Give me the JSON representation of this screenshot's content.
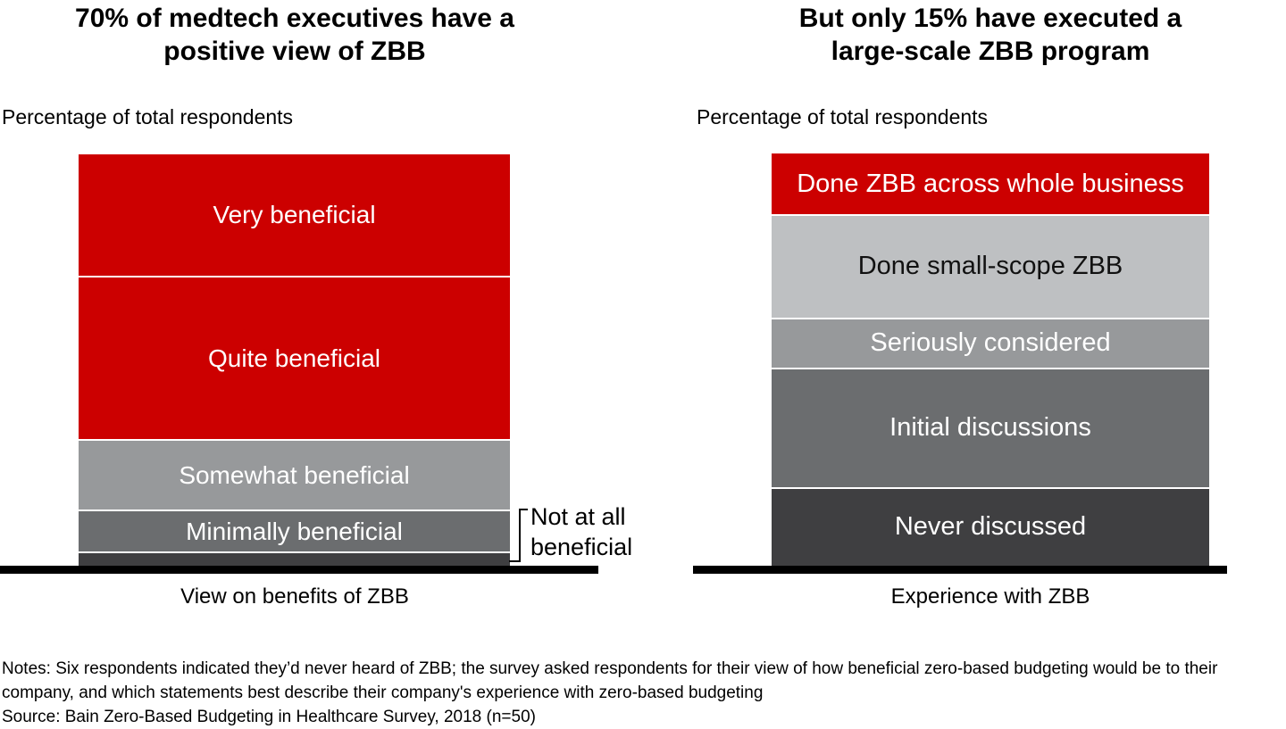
{
  "page": {
    "background": "#FFFFFF",
    "accent_red": "#CC0000",
    "axis_color": "#000000"
  },
  "chart_data": [
    {
      "id": "zbb-benefits-view",
      "type": "bar",
      "stacked": true,
      "title": "70% of medtech executives have a positive view of ZBB",
      "title_lines": [
        "70% of medtech executives have a",
        "positive view of ZBB"
      ],
      "units_label": "Percentage of total respondents",
      "x_axis_label": "View on benefits of ZBB",
      "categories": [
        "View on benefits of ZBB"
      ],
      "value_format": "percent",
      "ylim": [
        0,
        100
      ],
      "grid": false,
      "legend": "labels-inside-segments",
      "segment_order": "top-to-bottom",
      "series": [
        {
          "name": "Very beneficial",
          "value": 30,
          "color": "#CC0000",
          "text_color": "#FFFFFF",
          "label_inside": true
        },
        {
          "name": "Quite beneficial",
          "value": 40,
          "color": "#CC0000",
          "text_color": "#FFFFFF",
          "label_inside": true
        },
        {
          "name": "Somewhat beneficial",
          "value": 17,
          "color": "#97999B",
          "text_color": "#FFFFFF",
          "label_inside": true
        },
        {
          "name": "Minimally beneficial",
          "value": 10,
          "color": "#6B6D6F",
          "text_color": "#FFFFFF",
          "label_inside": true
        },
        {
          "name": "Not at all beneficial",
          "value": 3,
          "color": "#3F3F41",
          "text_color": "#000000",
          "label_inside": false,
          "label_position": "outside-right-with-bracket"
        }
      ]
    },
    {
      "id": "zbb-experience",
      "type": "bar",
      "stacked": true,
      "title": "But only 15% have executed a large-scale ZBB program",
      "title_lines": [
        "But only 15% have executed a",
        "large-scale ZBB program"
      ],
      "units_label": "Percentage of total respondents",
      "x_axis_label": "Experience with ZBB",
      "categories": [
        "Experience with ZBB"
      ],
      "value_format": "percent",
      "ylim": [
        0,
        100
      ],
      "grid": false,
      "legend": "labels-inside-segments",
      "segment_order": "top-to-bottom",
      "series": [
        {
          "name": "Done ZBB across whole business",
          "value": 15,
          "color": "#CC0000",
          "text_color": "#FFFFFF",
          "label_inside": true
        },
        {
          "name": "Done small-scope ZBB",
          "value": 25,
          "color": "#BEC0C2",
          "text_color": "#111111",
          "label_inside": true
        },
        {
          "name": "Seriously considered",
          "value": 12,
          "color": "#97999B",
          "text_color": "#FFFFFF",
          "label_inside": true
        },
        {
          "name": "Initial discussions",
          "value": 29,
          "color": "#6B6D6F",
          "text_color": "#FFFFFF",
          "label_inside": true
        },
        {
          "name": "Never discussed",
          "value": 19,
          "color": "#3F3F41",
          "text_color": "#FFFFFF",
          "label_inside": true
        }
      ]
    }
  ],
  "footer": {
    "notes_lines": [
      "Notes: Six respondents indicated they’d never heard of ZBB; the survey asked respondents for their view of how beneficial zero-based budgeting would be to their",
      "company, and which statements best describe their company's experience with zero-based budgeting"
    ],
    "source": "Source: Bain Zero-Based Budgeting in Healthcare Survey, 2018 (n=50)"
  }
}
